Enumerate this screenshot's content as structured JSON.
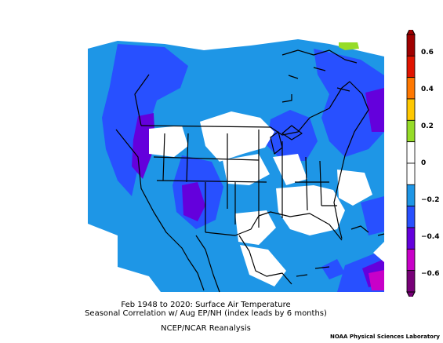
{
  "colorbar": {
    "ticks": [
      "0.6",
      "0.4",
      "0.2",
      "0",
      "−0.2",
      "−0.4",
      "−0.6"
    ],
    "levels": [
      0.6,
      0.4,
      0.2,
      0,
      -0.2,
      -0.4,
      -0.6
    ],
    "min": -0.7,
    "max": 0.7,
    "colors": [
      "#a00000",
      "#e01400",
      "#ff7800",
      "#ffc800",
      "#96dc28",
      "#ffffff",
      "#ffffff",
      "#1e96e6",
      "#2850ff",
      "#6400dc",
      "#c800c8",
      "#780078"
    ]
  },
  "caption": {
    "line1": "Feb 1948 to 2020: Surface Air Temperature",
    "line2": "Seasonal Correlation w/ Aug EP/NH (index leads by 6 months)",
    "line3": "NCEP/NCAR Reanalysis"
  },
  "credit": "NOAA Physical Sciences Laboratory"
}
